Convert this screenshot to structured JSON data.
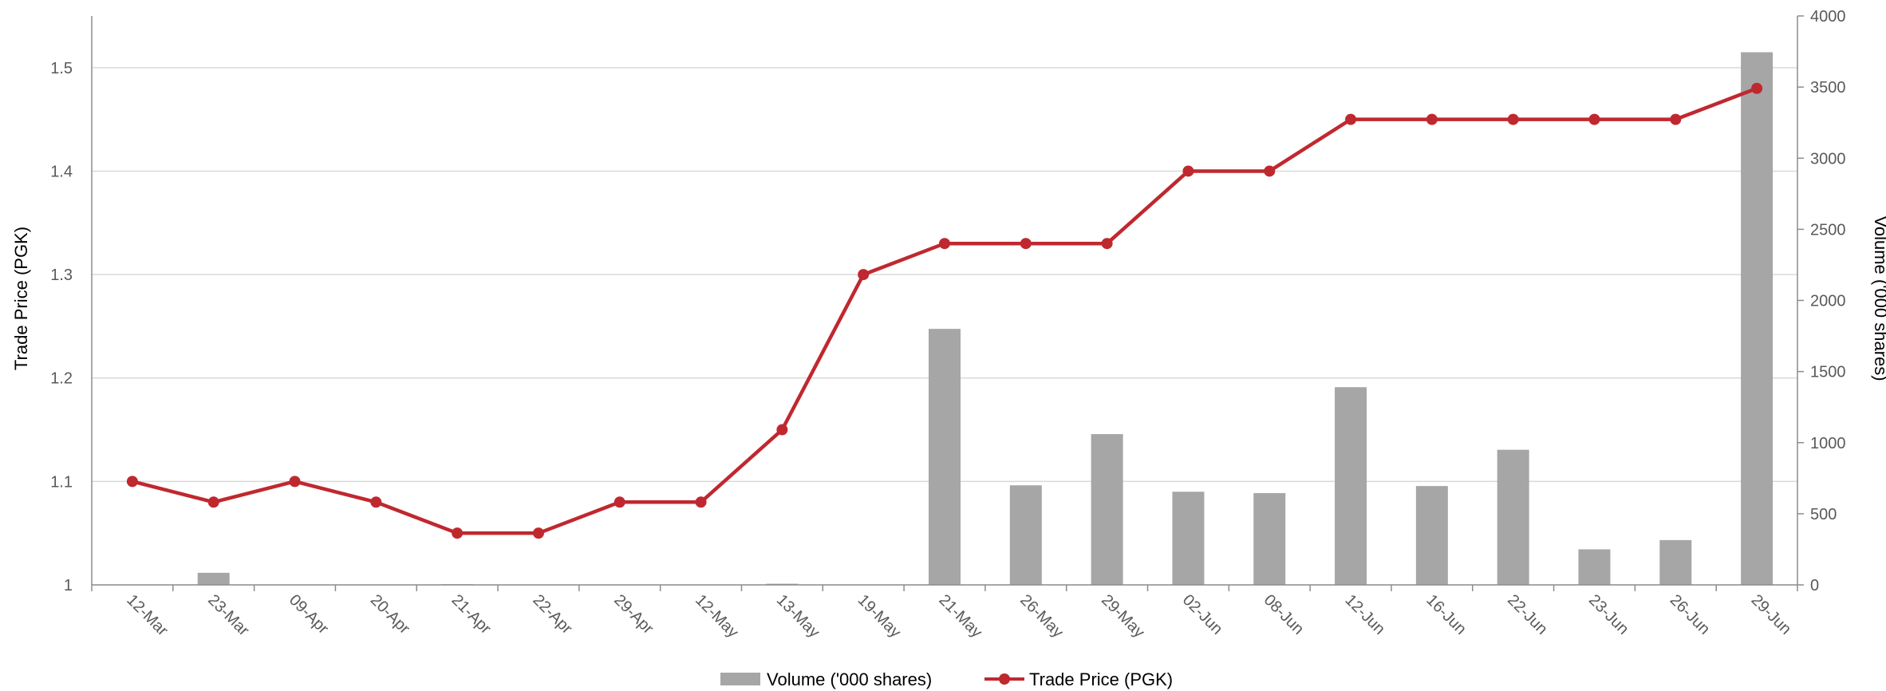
{
  "chart_data": {
    "type": "bar",
    "categories": [
      "12-Mar",
      "23-Mar",
      "09-Apr",
      "20-Apr",
      "21-Apr",
      "22-Apr",
      "29-Apr",
      "12-May",
      "13-May",
      "19-May",
      "21-May",
      "26-May",
      "29-May",
      "02-Jun",
      "08-Jun",
      "12-Jun",
      "16-Jun",
      "22-Jun",
      "23-Jun",
      "26-Jun",
      "29-Jun"
    ],
    "series": [
      {
        "name": "Volume ('000 shares)",
        "type": "bar",
        "axis": "right",
        "color": "#a6a6a6",
        "values": [
          0,
          85,
          0,
          0,
          5,
          0,
          3,
          3,
          8,
          0,
          1800,
          700,
          1060,
          655,
          645,
          1390,
          695,
          950,
          250,
          315,
          3745
        ]
      },
      {
        "name": "Trade Price (PGK)",
        "type": "line",
        "axis": "left",
        "color": "#c0282f",
        "values": [
          1.1,
          1.08,
          1.1,
          1.08,
          1.05,
          1.05,
          1.08,
          1.08,
          1.15,
          1.3,
          1.33,
          1.33,
          1.33,
          1.4,
          1.4,
          1.45,
          1.45,
          1.45,
          1.45,
          1.45,
          1.48
        ]
      }
    ],
    "y_left": {
      "label": "Trade Price (PGK)",
      "lim": [
        1.0,
        1.55
      ],
      "ticks": [
        1.0,
        1.1,
        1.2,
        1.3,
        1.4,
        1.5
      ],
      "tick_labels": [
        "1",
        "1.1",
        "1.2",
        "1.3",
        "1.4",
        "1.5"
      ]
    },
    "y_right": {
      "label": "Volume ('000 shares)",
      "lim": [
        0,
        4000
      ],
      "ticks": [
        0,
        500,
        1000,
        1500,
        2000,
        2500,
        3000,
        3500,
        4000
      ],
      "tick_labels": [
        "0",
        "500",
        "1000",
        "1500",
        "2000",
        "2500",
        "3000",
        "3500",
        "4000"
      ]
    },
    "grid": true,
    "legend": "bottom-center",
    "colors": {
      "gridline": "#d9d9d9",
      "axis": "#8c8c8c",
      "tick_text": "#595959"
    }
  }
}
